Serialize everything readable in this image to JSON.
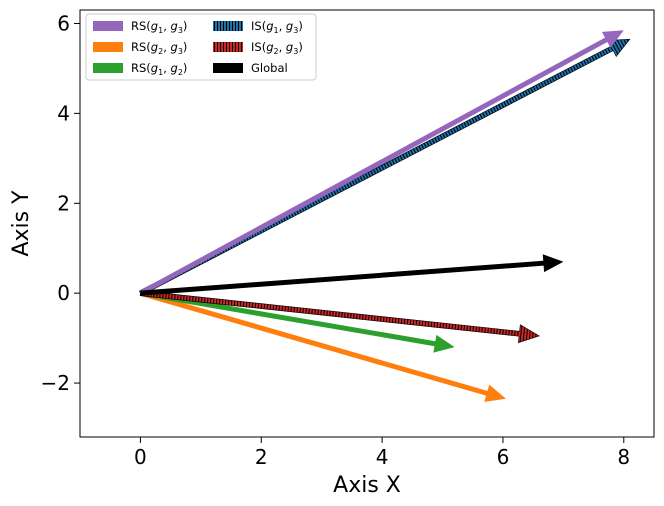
{
  "chart_data": {
    "type": "quiver",
    "title": "",
    "xlabel": "Axis X",
    "ylabel": "Axis Y",
    "xlim": [
      -1.0,
      8.5
    ],
    "ylim": [
      -3.2,
      6.3
    ],
    "xticks": [
      0,
      2,
      4,
      6,
      8
    ],
    "yticks": [
      -2,
      0,
      2,
      4,
      6
    ],
    "xtick_labels": [
      "0",
      "2",
      "4",
      "6",
      "8"
    ],
    "ytick_labels": [
      "−2",
      "0",
      "2",
      "4",
      "6"
    ],
    "grid": false,
    "legend_position": "top-left",
    "series": [
      {
        "name": "RS(g1, g3)",
        "label_main": "RS(",
        "label_a": "g",
        "sub_a": "1",
        "label_b": "g",
        "sub_b": "3",
        "color": "#9467bd",
        "hatch": false,
        "x0": 0,
        "y0": 0,
        "x": 8.0,
        "y": 5.85
      },
      {
        "name": "RS(g2, g3)",
        "label_main": "RS(",
        "label_a": "g",
        "sub_a": "2",
        "label_b": "g",
        "sub_b": "3",
        "color": "#ff7f0e",
        "hatch": false,
        "x0": 0,
        "y0": 0,
        "x": 6.05,
        "y": -2.35
      },
      {
        "name": "RS(g1, g2)",
        "label_main": "RS(",
        "label_a": "g",
        "sub_a": "1",
        "label_b": "g",
        "sub_b": "2",
        "color": "#2ca02c",
        "hatch": false,
        "x0": 0,
        "y0": 0,
        "x": 5.2,
        "y": -1.2
      },
      {
        "name": "IS(g1, g3)",
        "label_main": "IS(",
        "label_a": "g",
        "sub_a": "1",
        "label_b": "g",
        "sub_b": "3",
        "color": "#1f77b4",
        "hatch": true,
        "x0": 0,
        "y0": 0,
        "x": 8.1,
        "y": 5.65
      },
      {
        "name": "IS(g2, g3)",
        "label_main": "IS(",
        "label_a": "g",
        "sub_a": "2",
        "label_b": "g",
        "sub_b": "3",
        "color": "#d62728",
        "hatch": true,
        "x0": 0,
        "y0": 0,
        "x": 6.6,
        "y": -0.95
      },
      {
        "name": "Global",
        "label_main": "Global",
        "color": "#000000",
        "hatch": false,
        "x0": 0,
        "y0": 0,
        "x": 7.0,
        "y": 0.7
      }
    ]
  }
}
